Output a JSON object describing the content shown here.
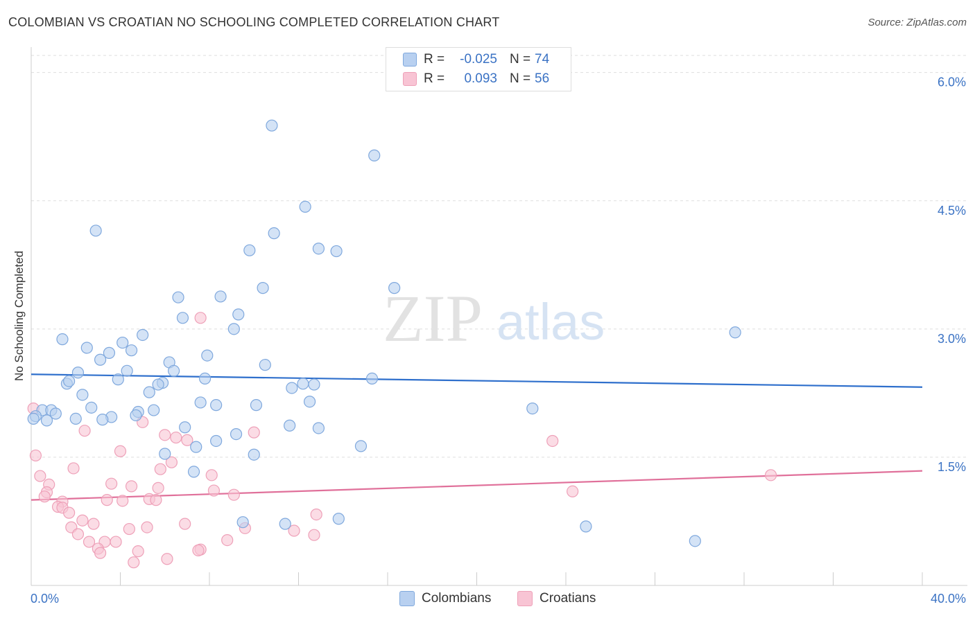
{
  "title": "COLOMBIAN VS CROATIAN NO SCHOOLING COMPLETED CORRELATION CHART",
  "source": "Source: ZipAtlas.com",
  "watermark": {
    "zip": "ZIP",
    "atlas": "atlas"
  },
  "legend": {
    "r_label": "R =",
    "n_label": "N =",
    "colombians": {
      "r": "-0.025",
      "n": "74"
    },
    "croatians": {
      "r": "0.093",
      "n": "56"
    }
  },
  "bottom_legend": {
    "colombians": "Colombians",
    "croatians": "Croatians"
  },
  "colors": {
    "blue_fill": "#b8d0f0",
    "blue_stroke": "#7fa8dd",
    "blue_line": "#2e6fcc",
    "pink_fill": "#f8c4d4",
    "pink_stroke": "#eea0b8",
    "pink_line": "#e0709a",
    "axis_text": "#3a72c4",
    "grid": "#dddddd"
  },
  "chart_data": {
    "type": "scatter",
    "title": "COLOMBIAN VS CROATIAN NO SCHOOLING COMPLETED CORRELATION CHART",
    "xlabel": "",
    "ylabel": "No Schooling Completed",
    "xlim": [
      0,
      40
    ],
    "ylim": [
      0,
      6.2
    ],
    "x_tick_labels": [
      {
        "value": 0,
        "label": "0.0%"
      },
      {
        "value": 40,
        "label": "40.0%"
      }
    ],
    "y_ticks": [
      {
        "value": 1.5,
        "label": "1.5%"
      },
      {
        "value": 3.0,
        "label": "3.0%"
      },
      {
        "value": 4.5,
        "label": "4.5%"
      },
      {
        "value": 6.0,
        "label": "6.0%"
      }
    ],
    "x_minor_ticks": [
      4,
      8,
      12,
      16,
      20,
      24,
      28,
      32,
      36,
      40
    ],
    "series": [
      {
        "name": "Colombians",
        "r": -0.025,
        "n": 74,
        "trend": {
          "x0": 0,
          "y0": 2.47,
          "x1": 40,
          "y1": 2.32
        },
        "points": [
          [
            10.8,
            5.38
          ],
          [
            15.4,
            5.03
          ],
          [
            12.3,
            4.43
          ],
          [
            2.9,
            4.15
          ],
          [
            10.9,
            4.12
          ],
          [
            12.9,
            3.94
          ],
          [
            9.8,
            3.92
          ],
          [
            13.7,
            3.91
          ],
          [
            10.4,
            3.48
          ],
          [
            16.3,
            3.48
          ],
          [
            6.6,
            3.37
          ],
          [
            8.5,
            3.38
          ],
          [
            9.3,
            3.17
          ],
          [
            6.8,
            3.13
          ],
          [
            9.1,
            3.0
          ],
          [
            31.6,
            2.96
          ],
          [
            5.0,
            2.93
          ],
          [
            1.4,
            2.88
          ],
          [
            4.1,
            2.84
          ],
          [
            2.5,
            2.78
          ],
          [
            3.5,
            2.72
          ],
          [
            4.5,
            2.75
          ],
          [
            7.9,
            2.69
          ],
          [
            3.1,
            2.64
          ],
          [
            6.2,
            2.61
          ],
          [
            10.5,
            2.58
          ],
          [
            4.3,
            2.51
          ],
          [
            6.4,
            2.51
          ],
          [
            2.1,
            2.49
          ],
          [
            3.9,
            2.41
          ],
          [
            7.8,
            2.42
          ],
          [
            15.3,
            2.42
          ],
          [
            1.6,
            2.36
          ],
          [
            1.7,
            2.39
          ],
          [
            5.9,
            2.37
          ],
          [
            5.7,
            2.35
          ],
          [
            12.2,
            2.36
          ],
          [
            12.7,
            2.35
          ],
          [
            11.7,
            2.31
          ],
          [
            5.3,
            2.26
          ],
          [
            2.3,
            2.23
          ],
          [
            7.6,
            2.14
          ],
          [
            12.5,
            2.15
          ],
          [
            8.3,
            2.11
          ],
          [
            10.1,
            2.11
          ],
          [
            2.7,
            2.08
          ],
          [
            22.5,
            2.07
          ],
          [
            0.5,
            2.05
          ],
          [
            0.9,
            2.05
          ],
          [
            5.5,
            2.05
          ],
          [
            4.8,
            2.03
          ],
          [
            1.1,
            2.01
          ],
          [
            4.7,
            1.99
          ],
          [
            0.2,
            1.98
          ],
          [
            3.6,
            1.97
          ],
          [
            2.0,
            1.95
          ],
          [
            0.7,
            1.93
          ],
          [
            3.2,
            1.94
          ],
          [
            11.6,
            1.87
          ],
          [
            6.9,
            1.85
          ],
          [
            12.9,
            1.84
          ],
          [
            9.2,
            1.77
          ],
          [
            8.3,
            1.69
          ],
          [
            7.4,
            1.62
          ],
          [
            14.8,
            1.63
          ],
          [
            6.0,
            1.54
          ],
          [
            10.0,
            1.53
          ],
          [
            7.3,
            1.33
          ],
          [
            9.5,
            0.74
          ],
          [
            11.4,
            0.72
          ],
          [
            13.8,
            0.78
          ],
          [
            24.9,
            0.69
          ],
          [
            29.8,
            0.52
          ],
          [
            0.1,
            1.95
          ]
        ]
      },
      {
        "name": "Croatians",
        "r": 0.093,
        "n": 56,
        "trend": {
          "x0": 0,
          "y0": 1.0,
          "x1": 40,
          "y1": 1.34
        },
        "points": [
          [
            7.6,
            3.13
          ],
          [
            0.1,
            2.07
          ],
          [
            2.4,
            1.81
          ],
          [
            5.0,
            1.91
          ],
          [
            10.0,
            1.79
          ],
          [
            6.0,
            1.76
          ],
          [
            6.5,
            1.73
          ],
          [
            7.0,
            1.7
          ],
          [
            23.4,
            1.69
          ],
          [
            4.0,
            1.57
          ],
          [
            0.2,
            1.52
          ],
          [
            6.3,
            1.44
          ],
          [
            1.9,
            1.37
          ],
          [
            5.8,
            1.36
          ],
          [
            8.1,
            1.29
          ],
          [
            0.4,
            1.28
          ],
          [
            33.2,
            1.29
          ],
          [
            0.8,
            1.18
          ],
          [
            3.6,
            1.19
          ],
          [
            4.5,
            1.16
          ],
          [
            5.7,
            1.14
          ],
          [
            8.2,
            1.11
          ],
          [
            0.7,
            1.09
          ],
          [
            9.1,
            1.06
          ],
          [
            24.3,
            1.1
          ],
          [
            0.6,
            1.04
          ],
          [
            3.4,
            1.0
          ],
          [
            4.1,
            0.99
          ],
          [
            5.3,
            1.01
          ],
          [
            5.6,
            1.0
          ],
          [
            1.4,
            0.98
          ],
          [
            1.2,
            0.92
          ],
          [
            1.4,
            0.91
          ],
          [
            1.7,
            0.85
          ],
          [
            12.8,
            0.83
          ],
          [
            2.3,
            0.76
          ],
          [
            2.8,
            0.72
          ],
          [
            6.9,
            0.72
          ],
          [
            1.8,
            0.68
          ],
          [
            4.4,
            0.66
          ],
          [
            5.2,
            0.68
          ],
          [
            9.6,
            0.67
          ],
          [
            11.8,
            0.64
          ],
          [
            2.1,
            0.6
          ],
          [
            12.7,
            0.59
          ],
          [
            8.8,
            0.53
          ],
          [
            2.6,
            0.51
          ],
          [
            3.3,
            0.51
          ],
          [
            3.8,
            0.51
          ],
          [
            3.0,
            0.43
          ],
          [
            7.6,
            0.42
          ],
          [
            3.1,
            0.38
          ],
          [
            4.8,
            0.4
          ],
          [
            7.5,
            0.41
          ],
          [
            6.1,
            0.31
          ],
          [
            4.6,
            0.27
          ]
        ]
      }
    ]
  }
}
